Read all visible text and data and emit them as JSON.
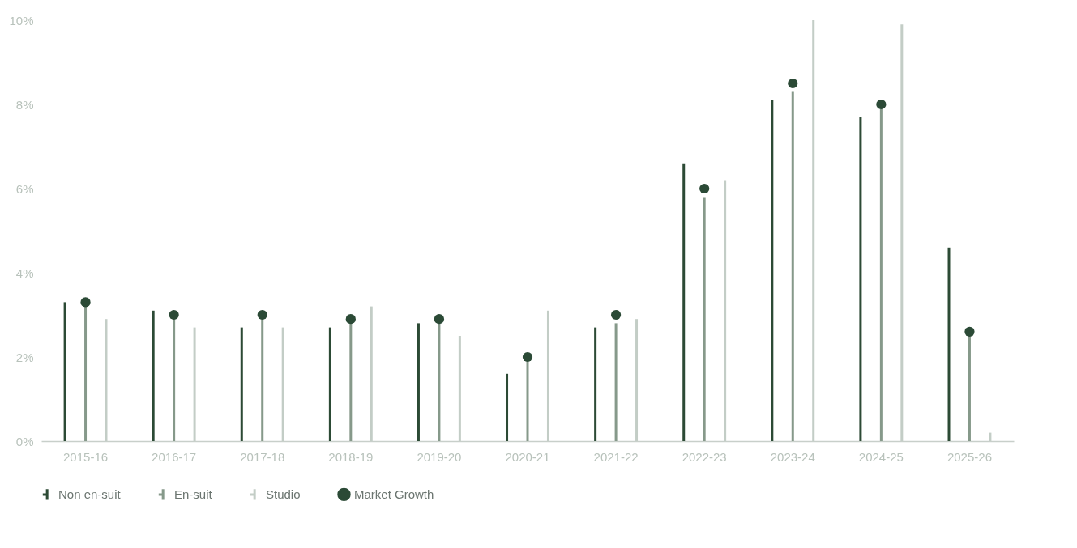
{
  "chart_data": {
    "type": "bar",
    "categories": [
      "2015-16",
      "2016-17",
      "2017-18",
      "2018-19",
      "2019-20",
      "2020-21",
      "2021-22",
      "2022-23",
      "2023-24",
      "2024-25",
      "2025-26"
    ],
    "series": [
      {
        "name": "Non en-suit",
        "color": "#2c4a35",
        "values": [
          3.3,
          3.1,
          2.7,
          2.7,
          2.8,
          1.6,
          2.7,
          6.6,
          8.1,
          7.7,
          4.6
        ]
      },
      {
        "name": "En-suit",
        "color": "#86998a",
        "values": [
          3.2,
          2.9,
          2.9,
          2.8,
          2.8,
          1.9,
          2.8,
          5.8,
          8.3,
          7.9,
          2.5
        ]
      },
      {
        "name": "Studio",
        "color": "#c3cdc6",
        "values": [
          2.9,
          2.7,
          2.7,
          3.2,
          2.5,
          3.1,
          2.9,
          6.2,
          10.0,
          9.9,
          0.2
        ]
      },
      {
        "name": "Market Growth",
        "type": "scatter",
        "color": "#2b4a36",
        "values": [
          3.3,
          3.0,
          3.0,
          2.9,
          2.9,
          2.0,
          3.0,
          6.0,
          8.5,
          8.0,
          2.6
        ]
      }
    ],
    "ylim": [
      0,
      10
    ],
    "yticks": [
      {
        "value": 0,
        "label": "0%"
      },
      {
        "value": 2,
        "label": "2%"
      },
      {
        "value": 4,
        "label": "4%"
      },
      {
        "value": 6,
        "label": "6%"
      },
      {
        "value": 8,
        "label": "8%"
      },
      {
        "value": 10,
        "label": "10%"
      }
    ],
    "legend": "bottom",
    "marker": "circle"
  }
}
